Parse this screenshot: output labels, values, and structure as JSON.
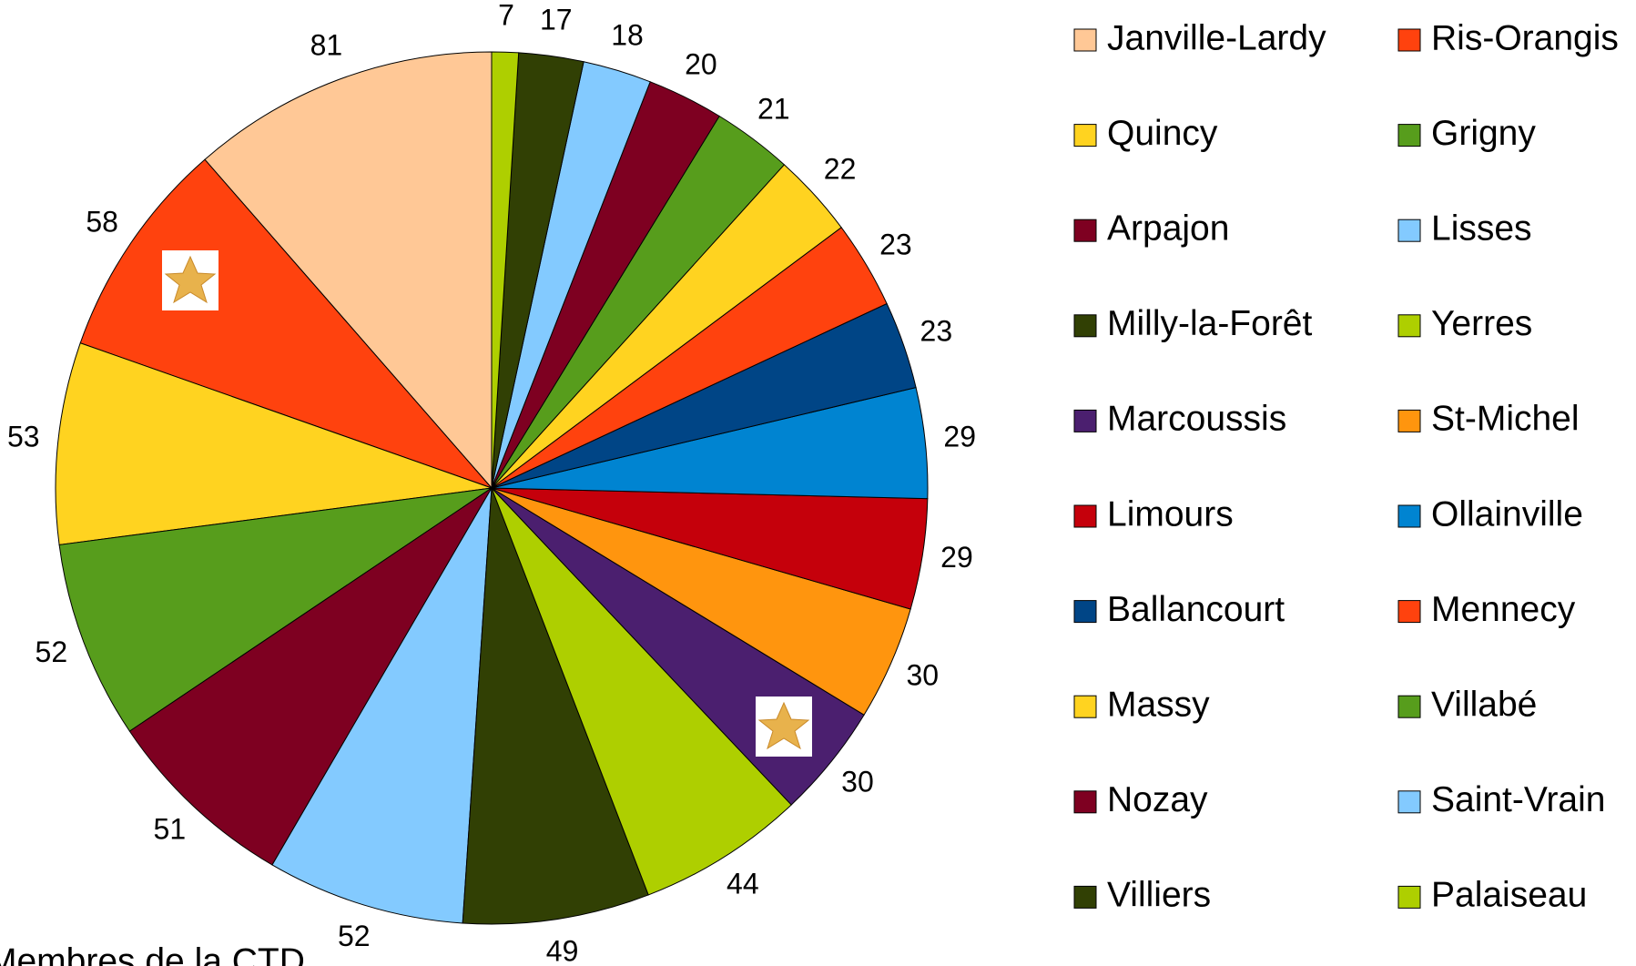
{
  "chart_data": {
    "type": "pie",
    "annotation": "Membres de la CTD",
    "series": [
      {
        "name": "Janville-Lardy",
        "color": "#ffc896",
        "values": [
          81
        ]
      },
      {
        "name": "Ris-Orangis",
        "color": "#ff420e",
        "values": [
          58
        ]
      },
      {
        "name": "Quincy",
        "color": "#ffd320",
        "values": [
          53
        ]
      },
      {
        "name": "Grigny",
        "color": "#579d1c",
        "values": [
          52
        ]
      },
      {
        "name": "Arpajon",
        "color": "#7e0021",
        "values": [
          51
        ]
      },
      {
        "name": "Lisses",
        "color": "#83caff",
        "values": [
          52
        ]
      },
      {
        "name": "Milly-la-Forêt",
        "color": "#314004",
        "values": [
          49
        ]
      },
      {
        "name": "Yerres",
        "color": "#aecf00",
        "values": [
          44
        ]
      },
      {
        "name": "Marcoussis",
        "color": "#4b1f6f",
        "values": [
          30
        ]
      },
      {
        "name": "St-Michel",
        "color": "#ff950e",
        "values": [
          30
        ]
      },
      {
        "name": "Limours",
        "color": "#c5000b",
        "values": [
          29
        ]
      },
      {
        "name": "Ollainville",
        "color": "#0084d1",
        "values": [
          29
        ]
      },
      {
        "name": "Ballancourt",
        "color": "#004586",
        "values": [
          23
        ]
      },
      {
        "name": "Mennecy",
        "color": "#ff420e",
        "values": [
          23
        ]
      },
      {
        "name": "Massy",
        "color": "#ffd320",
        "values": [
          22
        ]
      },
      {
        "name": "Villabé",
        "color": "#579d1c",
        "values": [
          21
        ]
      },
      {
        "name": "Nozay",
        "color": "#7e0021",
        "values": [
          20
        ]
      },
      {
        "name": "Saint-Vrain",
        "color": "#83caff",
        "values": [
          18
        ]
      },
      {
        "name": "Villiers",
        "color": "#314004",
        "values": [
          17
        ]
      },
      {
        "name": "Palaiseau",
        "color": "#aecf00",
        "values": [
          7
        ]
      }
    ],
    "legend": "right"
  }
}
